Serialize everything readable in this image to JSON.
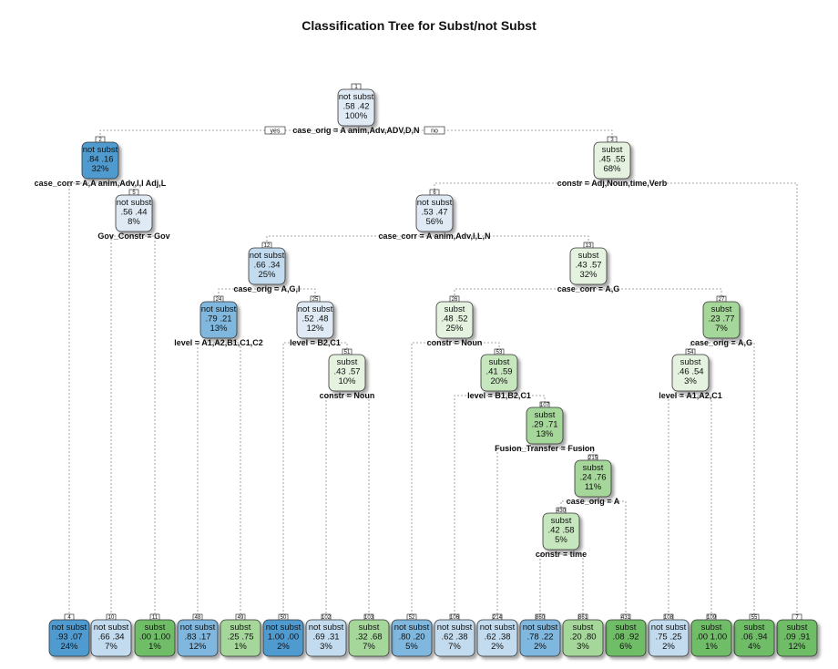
{
  "title": "Classification Tree for Subst/not Subst",
  "yes_label": "yes",
  "no_label": "no",
  "colors": {
    "not_subst_dark": "#4f9bd0",
    "not_subst_mid": "#7fb7de",
    "not_subst_light": "#c2dbee",
    "neutral_blue": "#dfeaf4",
    "neutral_green": "#e4f2df",
    "subst_light": "#c6e6be",
    "subst_mid": "#a5d69a",
    "subst_dark": "#6fbd67"
  },
  "nodes": [
    {
      "id": "1",
      "cls": "not subst",
      "probs": ".58  .42",
      "pct": "100%",
      "split": "case_orig = A anim,Adv,ADV,D,N",
      "color": "neutral_blue"
    },
    {
      "id": "2",
      "cls": "not subst",
      "probs": ".84  .16",
      "pct": "32%",
      "split": "case_corr = A,A anim,Adv,I,I Adj,L",
      "color": "not_subst_dark"
    },
    {
      "id": "3",
      "cls": "subst",
      "probs": ".45  .55",
      "pct": "68%",
      "split": "constr = Adj,Noun,time,Verb",
      "color": "neutral_green"
    },
    {
      "id": "5",
      "cls": "not subst",
      "probs": ".56  .44",
      "pct": "8%",
      "split": "Gov_Constr = Gov",
      "color": "neutral_blue"
    },
    {
      "id": "6",
      "cls": "not subst",
      "probs": ".53  .47",
      "pct": "56%",
      "split": "case_corr = A anim,Adv,I,L,N",
      "color": "neutral_blue"
    },
    {
      "id": "12",
      "cls": "not subst",
      "probs": ".66  .34",
      "pct": "25%",
      "split": "case_orig = A,G,I",
      "color": "not_subst_light"
    },
    {
      "id": "13",
      "cls": "subst",
      "probs": ".43  .57",
      "pct": "32%",
      "split": "case_corr = A,G",
      "color": "neutral_green"
    },
    {
      "id": "24",
      "cls": "not subst",
      "probs": ".79  .21",
      "pct": "13%",
      "split": "level = A1,A2,B1,C1,C2",
      "color": "not_subst_mid"
    },
    {
      "id": "25",
      "cls": "not subst",
      "probs": ".52  .48",
      "pct": "12%",
      "split": "level = B2,C1",
      "color": "neutral_blue"
    },
    {
      "id": "51",
      "cls": "subst",
      "probs": ".43  .57",
      "pct": "10%",
      "split": "constr = Noun",
      "color": "neutral_green"
    },
    {
      "id": "26",
      "cls": "subst",
      "probs": ".48  .52",
      "pct": "25%",
      "split": "constr = Noun",
      "color": "neutral_green"
    },
    {
      "id": "53",
      "cls": "subst",
      "probs": ".41  .59",
      "pct": "20%",
      "split": "level = B1,B2,C1",
      "color": "subst_light"
    },
    {
      "id": "107",
      "cls": "subst",
      "probs": ".29  .71",
      "pct": "13%",
      "split": "Fusion_Transfer = Fusion",
      "color": "subst_mid"
    },
    {
      "id": "215",
      "cls": "subst",
      "probs": ".24  .76",
      "pct": "11%",
      "split": "case_orig = A",
      "color": "subst_mid"
    },
    {
      "id": "430",
      "cls": "subst",
      "probs": ".42  .58",
      "pct": "5%",
      "split": "constr = time",
      "color": "subst_light"
    },
    {
      "id": "27",
      "cls": "subst",
      "probs": ".23  .77",
      "pct": "7%",
      "split": "case_orig = A,G",
      "color": "subst_mid"
    },
    {
      "id": "54",
      "cls": "subst",
      "probs": ".46  .54",
      "pct": "3%",
      "split": "level = A1,A2,C1",
      "color": "neutral_green"
    }
  ],
  "leaves": [
    {
      "id": "4",
      "cls": "not subst",
      "probs": ".93  .07",
      "pct": "24%",
      "color": "not_subst_dark"
    },
    {
      "id": "10",
      "cls": "not subst",
      "probs": ".66  .34",
      "pct": "7%",
      "color": "not_subst_light"
    },
    {
      "id": "11",
      "cls": "subst",
      "probs": ".00  1.00",
      "pct": "1%",
      "color": "subst_dark"
    },
    {
      "id": "48",
      "cls": "not subst",
      "probs": ".83  .17",
      "pct": "12%",
      "color": "not_subst_mid"
    },
    {
      "id": "49",
      "cls": "subst",
      "probs": ".25  .75",
      "pct": "1%",
      "color": "subst_mid"
    },
    {
      "id": "50",
      "cls": "not subst",
      "probs": "1.00  .00",
      "pct": "2%",
      "color": "not_subst_dark"
    },
    {
      "id": "102",
      "cls": "not subst",
      "probs": ".69  .31",
      "pct": "3%",
      "color": "not_subst_light"
    },
    {
      "id": "103",
      "cls": "subst",
      "probs": ".32  .68",
      "pct": "7%",
      "color": "subst_mid"
    },
    {
      "id": "52",
      "cls": "not subst",
      "probs": ".80  .20",
      "pct": "5%",
      "color": "not_subst_mid"
    },
    {
      "id": "106",
      "cls": "not subst",
      "probs": ".62  .38",
      "pct": "7%",
      "color": "not_subst_light"
    },
    {
      "id": "214",
      "cls": "not subst",
      "probs": ".62  .38",
      "pct": "2%",
      "color": "not_subst_light"
    },
    {
      "id": "860",
      "cls": "not subst",
      "probs": ".78  .22",
      "pct": "2%",
      "color": "not_subst_mid"
    },
    {
      "id": "861",
      "cls": "subst",
      "probs": ".20  .80",
      "pct": "3%",
      "color": "subst_mid"
    },
    {
      "id": "431",
      "cls": "subst",
      "probs": ".08  .92",
      "pct": "6%",
      "color": "subst_dark"
    },
    {
      "id": "108",
      "cls": "not subst",
      "probs": ".75  .25",
      "pct": "2%",
      "color": "not_subst_light"
    },
    {
      "id": "109",
      "cls": "subst",
      "probs": ".00  1.00",
      "pct": "1%",
      "color": "subst_dark"
    },
    {
      "id": "55",
      "cls": "subst",
      "probs": ".06  .94",
      "pct": "4%",
      "color": "subst_dark"
    },
    {
      "id": "7",
      "cls": "subst",
      "probs": ".09  .91",
      "pct": "12%",
      "color": "subst_dark"
    }
  ]
}
